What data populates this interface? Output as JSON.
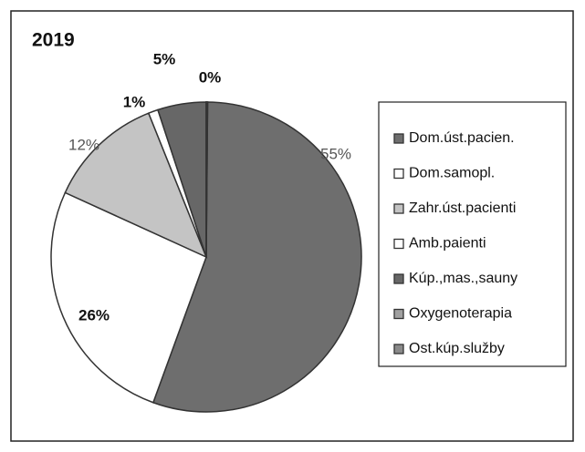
{
  "chart_data": {
    "type": "pie",
    "title": "2019",
    "categories": [
      "Dom.úst.pacien.",
      "Dom.samopl.",
      "Zahr.úst.pacienti",
      "Amb.paienti",
      "Kúp.,mas.,sauny",
      "Oxygenoterapia",
      "Ost.kúp.služby"
    ],
    "values": [
      55,
      26,
      12,
      1,
      5,
      0,
      0
    ],
    "value_labels": [
      "55%",
      "26%",
      "12%",
      "1%",
      "5%",
      "0%",
      null
    ],
    "colors": [
      "#6e6e6e",
      "#ffffff",
      "#c4c4c4",
      "#ffffff",
      "#676767",
      "#a0a0a0",
      "#8a8a8a"
    ],
    "legend": "right"
  }
}
